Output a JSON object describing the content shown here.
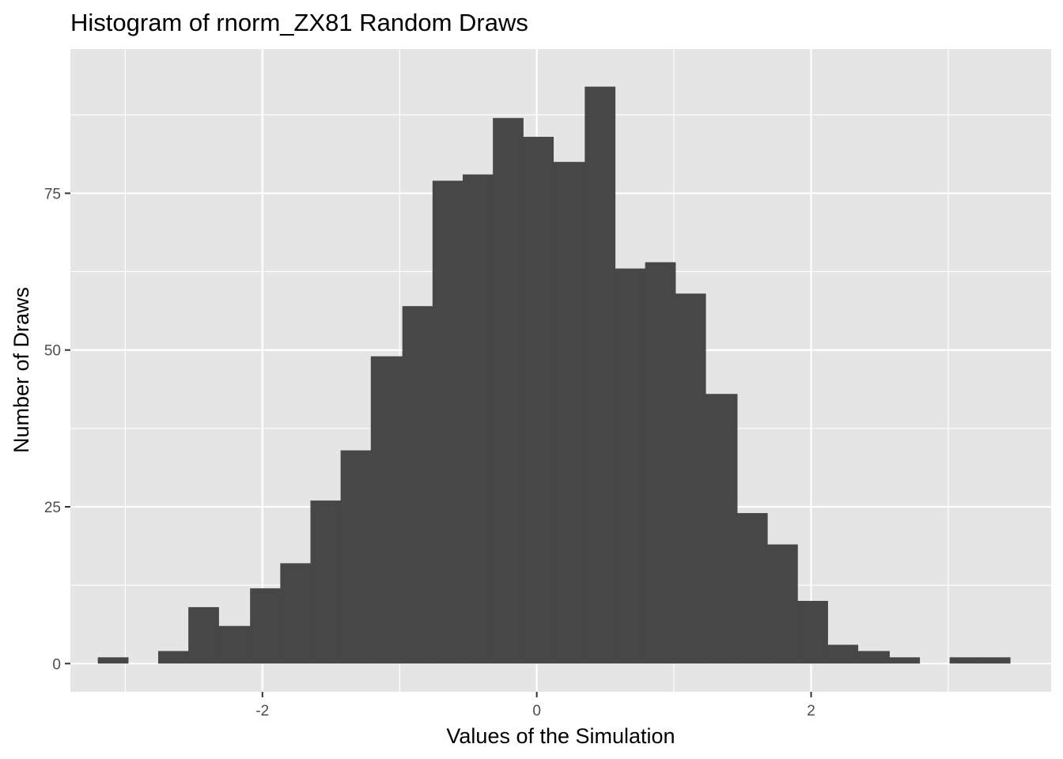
{
  "chart_data": {
    "type": "bar",
    "title": "Histogram of rnorm_ZX81 Random Draws",
    "xlabel": "Values of the Simulation",
    "ylabel": "Number of Draws",
    "xlim": [
      -3.4,
      3.75
    ],
    "ylim": [
      -4.5,
      98.0
    ],
    "x_ticks": [
      -2,
      0,
      2
    ],
    "x_tick_labels": [
      "-2",
      "0",
      "2"
    ],
    "y_ticks": [
      0,
      25,
      50,
      75
    ],
    "y_tick_labels": [
      "0",
      "25",
      "50",
      "75"
    ],
    "grid": true,
    "bin_width": 0.2213,
    "bins": [
      {
        "x0": -3.2,
        "x1": -2.98,
        "count": 1
      },
      {
        "x0": -2.98,
        "x1": -2.76,
        "count": 0
      },
      {
        "x0": -2.76,
        "x1": -2.54,
        "count": 2
      },
      {
        "x0": -2.54,
        "x1": -2.32,
        "count": 9
      },
      {
        "x0": -2.32,
        "x1": -2.09,
        "count": 6
      },
      {
        "x0": -2.09,
        "x1": -1.87,
        "count": 12
      },
      {
        "x0": -1.87,
        "x1": -1.65,
        "count": 16
      },
      {
        "x0": -1.65,
        "x1": -1.43,
        "count": 26
      },
      {
        "x0": -1.43,
        "x1": -1.21,
        "count": 34
      },
      {
        "x0": -1.21,
        "x1": -0.98,
        "count": 49
      },
      {
        "x0": -0.98,
        "x1": -0.76,
        "count": 57
      },
      {
        "x0": -0.76,
        "x1": -0.54,
        "count": 77
      },
      {
        "x0": -0.54,
        "x1": -0.32,
        "count": 78
      },
      {
        "x0": -0.32,
        "x1": -0.1,
        "count": 87
      },
      {
        "x0": -0.1,
        "x1": 0.12,
        "count": 84
      },
      {
        "x0": 0.12,
        "x1": 0.35,
        "count": 80
      },
      {
        "x0": 0.35,
        "x1": 0.57,
        "count": 92
      },
      {
        "x0": 0.57,
        "x1": 0.79,
        "count": 63
      },
      {
        "x0": 0.79,
        "x1": 1.01,
        "count": 64
      },
      {
        "x0": 1.01,
        "x1": 1.23,
        "count": 59
      },
      {
        "x0": 1.23,
        "x1": 1.46,
        "count": 43
      },
      {
        "x0": 1.46,
        "x1": 1.68,
        "count": 24
      },
      {
        "x0": 1.68,
        "x1": 1.9,
        "count": 19
      },
      {
        "x0": 1.9,
        "x1": 2.12,
        "count": 10
      },
      {
        "x0": 2.12,
        "x1": 2.34,
        "count": 3
      },
      {
        "x0": 2.34,
        "x1": 2.57,
        "count": 2
      },
      {
        "x0": 2.57,
        "x1": 2.79,
        "count": 1
      },
      {
        "x0": 2.79,
        "x1": 3.01,
        "count": 0
      },
      {
        "x0": 3.01,
        "x1": 3.23,
        "count": 1
      },
      {
        "x0": 3.23,
        "x1": 3.45,
        "count": 1
      }
    ],
    "colors": {
      "panel_background": "#e5e5e5",
      "grid_line": "#ffffff",
      "bar_fill": "#474747",
      "tick_text": "#4d4d4d",
      "tick_mark": "#333333"
    }
  }
}
